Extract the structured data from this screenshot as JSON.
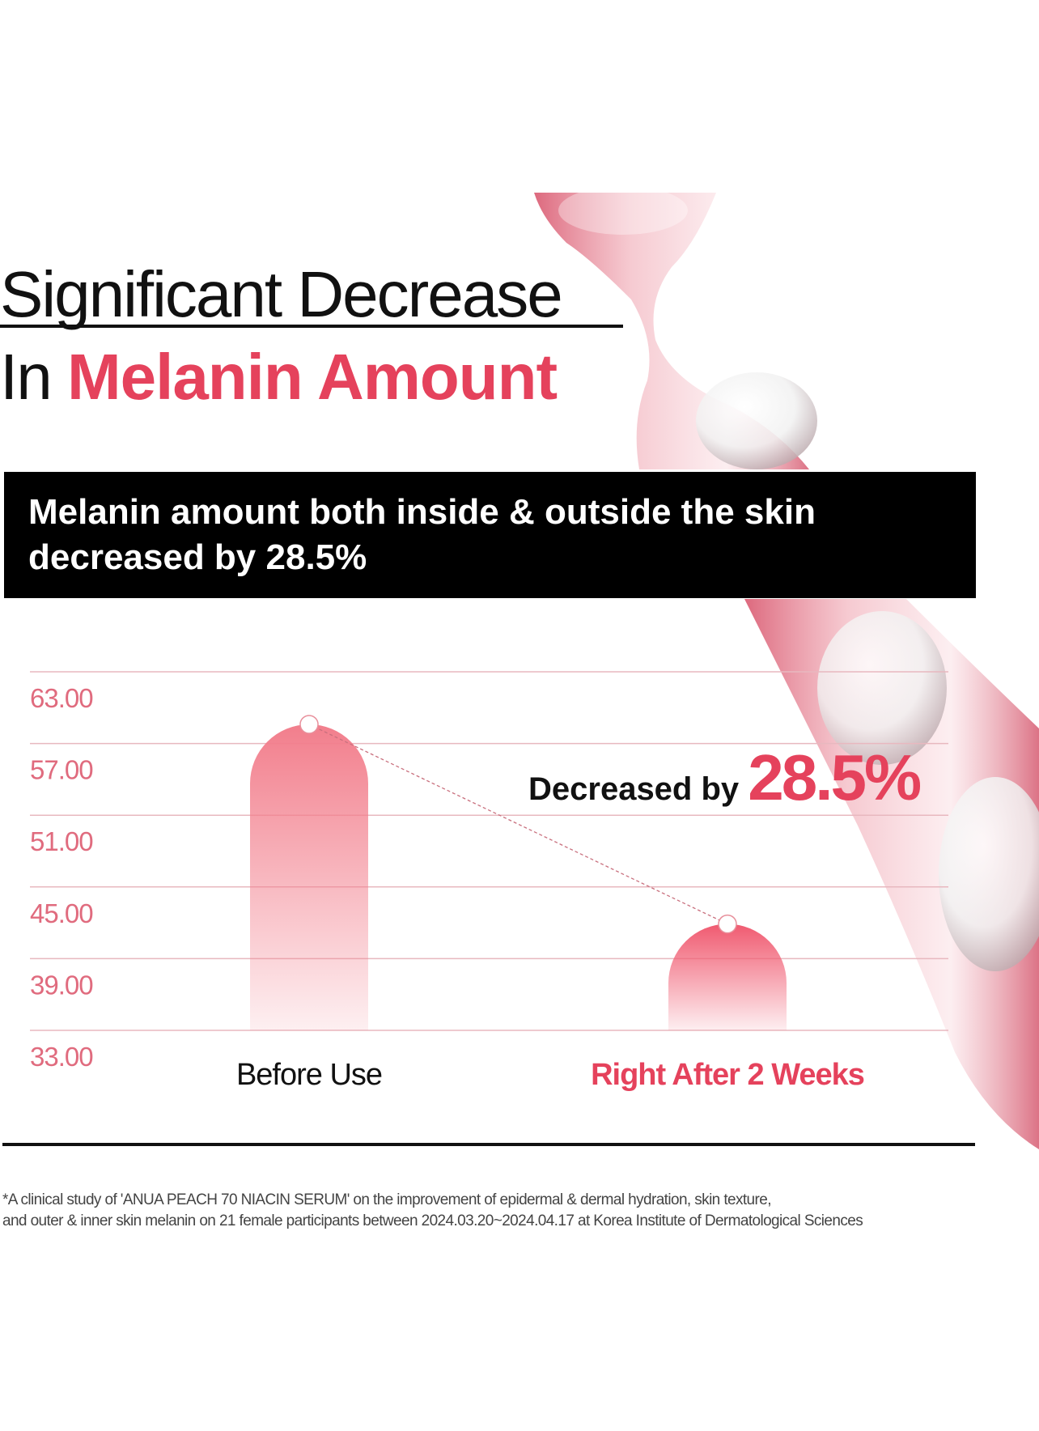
{
  "title": {
    "line1": "Significant Decrease",
    "line2_prefix": "In ",
    "line2_accent": "Melanin Amount"
  },
  "banner": {
    "line1": "Melanin amount both inside & outside the skin",
    "line2": "decreased by 28.5%"
  },
  "colors": {
    "accent": "#e5425c",
    "bar": "#f27e8c",
    "grid": "#e8b8bf",
    "tick": "#e06b7e"
  },
  "chart_data": {
    "type": "bar",
    "categories": [
      "Before Use",
      "Right After 2 Weeks"
    ],
    "values": [
      58.6,
      41.9
    ],
    "ylim": [
      33,
      63
    ],
    "yticks": [
      "63.00",
      "57.00",
      "51.00",
      "45.00",
      "39.00",
      "33.00"
    ],
    "grid": true,
    "connector": "dashed",
    "annotation": {
      "prefix": "Decreased by ",
      "value": "28.5%"
    }
  },
  "footnote": {
    "line1": "*A clinical study of 'ANUA PEACH 70 NIACIN SERUM' on the improvement of epidermal & dermal hydration, skin texture,",
    "line2": "and outer & inner skin melanin on 21 female participants between 2024.03.20~2024.04.17 at Korea Institute of Dermatological Sciences"
  }
}
